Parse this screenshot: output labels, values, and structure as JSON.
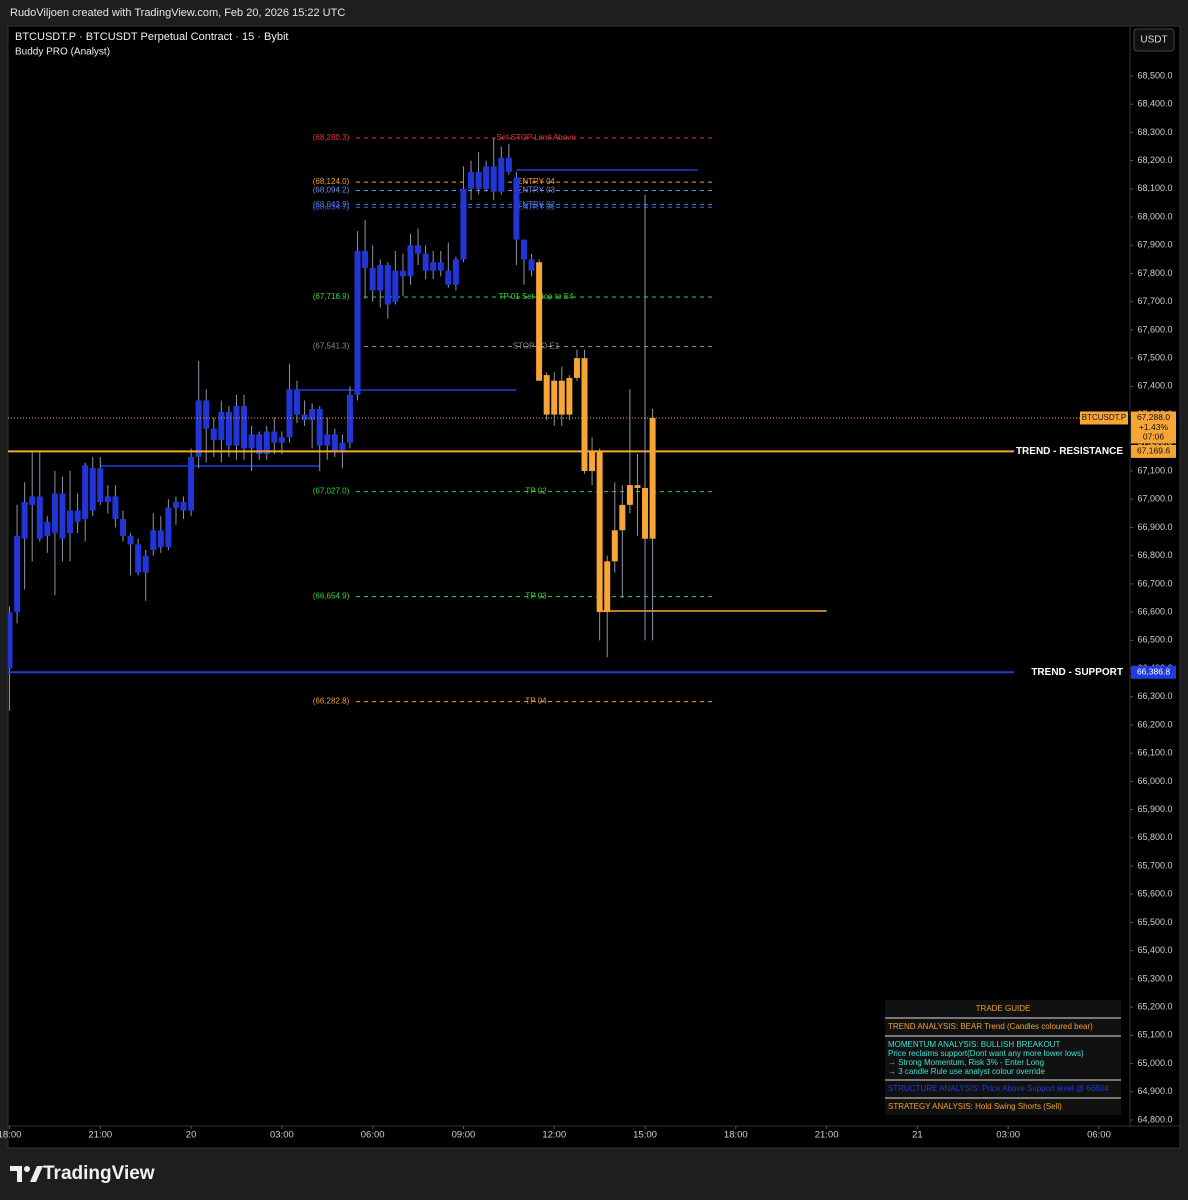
{
  "header": {
    "credit": "RudoViljoen created with TradingView.com, Feb 20, 2026 15:22 UTC",
    "currency_button": "USDT"
  },
  "footer": {
    "brand": "TradingView"
  },
  "chart_data": {
    "type": "candlestick",
    "title": "BTCUSDT.P · BTCUSDT Perpetual Contract · 15 · Bybit",
    "subtitle": "Buddy PRO (Analyst)",
    "xlim": [
      -0.2,
      148.1
    ],
    "xticks": [
      {
        "value": 0,
        "label": "18:00"
      },
      {
        "value": 12,
        "label": "21:00"
      },
      {
        "value": 24,
        "label": "20"
      },
      {
        "value": 36,
        "label": "03:00"
      },
      {
        "value": 48,
        "label": "06:00"
      },
      {
        "value": 60,
        "label": "09:00"
      },
      {
        "value": 72,
        "label": "12:00"
      },
      {
        "value": 84,
        "label": "15:00"
      },
      {
        "value": 96,
        "label": "18:00"
      },
      {
        "value": 108,
        "label": "21:00"
      },
      {
        "value": 120,
        "label": "21"
      },
      {
        "value": 132,
        "label": "03:00"
      },
      {
        "value": 144,
        "label": "06:00"
      }
    ],
    "ylim": [
      64778.7,
      68663
    ],
    "yticks": [
      {
        "value": 64800,
        "label": "64,800.0"
      },
      {
        "value": 64900,
        "label": "64,900.0"
      },
      {
        "value": 65000,
        "label": "65,000.0"
      },
      {
        "value": 65100,
        "label": "65,100.0"
      },
      {
        "value": 65200,
        "label": "65,200.0"
      },
      {
        "value": 65300,
        "label": "65,300.0"
      },
      {
        "value": 65400,
        "label": "65,400.0"
      },
      {
        "value": 65500,
        "label": "65,500.0"
      },
      {
        "value": 65600,
        "label": "65,600.0"
      },
      {
        "value": 65700,
        "label": "65,700.0"
      },
      {
        "value": 65800,
        "label": "65,800.0"
      },
      {
        "value": 65900,
        "label": "65,900.0"
      },
      {
        "value": 66000,
        "label": "66,000.0"
      },
      {
        "value": 66100,
        "label": "66,100.0"
      },
      {
        "value": 66200,
        "label": "66,200.0"
      },
      {
        "value": 66300,
        "label": "66,300.0"
      },
      {
        "value": 66400,
        "label": "66,400.0"
      },
      {
        "value": 66500,
        "label": "66,500.0"
      },
      {
        "value": 66600,
        "label": "66,600.0"
      },
      {
        "value": 66700,
        "label": "66,700.0"
      },
      {
        "value": 66800,
        "label": "66,800.0"
      },
      {
        "value": 66900,
        "label": "66,900.0"
      },
      {
        "value": 67000,
        "label": "67,000.0"
      },
      {
        "value": 67100,
        "label": "67,100.0"
      },
      {
        "value": 67200,
        "label": "67,200.0"
      },
      {
        "value": 67300,
        "label": "67,300.0"
      },
      {
        "value": 67400,
        "label": "67,400.0"
      },
      {
        "value": 67500,
        "label": "67,500.0"
      },
      {
        "value": 67600,
        "label": "67,600.0"
      },
      {
        "value": 67700,
        "label": "67,700.0"
      },
      {
        "value": 67800,
        "label": "67,800.0"
      },
      {
        "value": 67900,
        "label": "67,900.0"
      },
      {
        "value": 68000,
        "label": "68,000.0"
      },
      {
        "value": 68100,
        "label": "68,100.0"
      },
      {
        "value": 68200,
        "label": "68,200.0"
      },
      {
        "value": 68300,
        "label": "68,300.0"
      },
      {
        "value": 68400,
        "label": "68,400.0"
      },
      {
        "value": 68500,
        "label": "68,500.0"
      }
    ],
    "series": [
      {
        "color": "#2236d8",
        "x": [
          0,
          1,
          2,
          3,
          4,
          5,
          6,
          7,
          8,
          9,
          10,
          11,
          12,
          13,
          14,
          15,
          16,
          17,
          18,
          19,
          20,
          21,
          22,
          23,
          24,
          25,
          26,
          27,
          28,
          29,
          30,
          31,
          32,
          33,
          34,
          35,
          36,
          37,
          38,
          39,
          40,
          41,
          42,
          43,
          44,
          45,
          46,
          47,
          48,
          49,
          50,
          51,
          52,
          53,
          54,
          55,
          56,
          57,
          58,
          59,
          60,
          61,
          62,
          63,
          64,
          65,
          66,
          67,
          68,
          69
        ],
        "open": [
          66400,
          66600,
          66860,
          66980,
          67010,
          66870,
          66880,
          67020,
          66880,
          66960,
          66930,
          66960,
          67110,
          66990,
          67010,
          66930,
          66870,
          66840,
          66740,
          66820,
          66890,
          66830,
          66970,
          66990,
          66960,
          67150,
          67350,
          67250,
          67210,
          67310,
          67190,
          67330,
          67180,
          67230,
          67160,
          67240,
          67200,
          67220,
          67390,
          67300,
          67280,
          67320,
          67190,
          67230,
          67170,
          67200,
          67370,
          67880,
          67820,
          67740,
          67830,
          67700,
          67810,
          67790,
          67900,
          67870,
          67810,
          67840,
          67810,
          67760,
          67850,
          68100,
          68160,
          68100,
          68180,
          68090,
          68210,
          68140,
          67920,
          67850
        ],
        "high": [
          66620,
          66980,
          67060,
          67170,
          67170,
          66940,
          67100,
          67080,
          67100,
          67020,
          67130,
          67150,
          67150,
          67050,
          67050,
          66960,
          66880,
          66860,
          66820,
          66950,
          66940,
          67000,
          67010,
          67010,
          67180,
          67490,
          67390,
          67290,
          67350,
          67330,
          67370,
          67370,
          67260,
          67240,
          67260,
          67290,
          67240,
          67480,
          67420,
          67350,
          67340,
          67330,
          67290,
          67250,
          67230,
          67400,
          67950,
          67990,
          67900,
          67850,
          67840,
          67880,
          67870,
          67940,
          67960,
          67900,
          67880,
          67880,
          67910,
          67860,
          68180,
          68200,
          68230,
          68200,
          68280,
          68250,
          68260,
          68160,
          67920,
          67870
        ],
        "low": [
          66250,
          66560,
          66680,
          66780,
          66850,
          66810,
          66660,
          66780,
          66780,
          66880,
          66850,
          66940,
          66980,
          66950,
          66900,
          66850,
          66730,
          66730,
          66640,
          66800,
          66810,
          66820,
          66910,
          66930,
          66940,
          67110,
          67130,
          67150,
          67130,
          67150,
          67140,
          67140,
          67100,
          67140,
          67140,
          67160,
          67160,
          67200,
          67270,
          67260,
          67180,
          67100,
          67140,
          67150,
          67110,
          67180,
          67350,
          67710,
          67700,
          67680,
          67640,
          67690,
          67720,
          67760,
          67830,
          67780,
          67780,
          67790,
          67750,
          67740,
          67840,
          68060,
          68080,
          68090,
          68060,
          68080,
          68150,
          67830,
          67760,
          67790
        ],
        "close": [
          66600,
          66870,
          66990,
          67010,
          66860,
          66920,
          67020,
          66860,
          66960,
          66920,
          67120,
          67110,
          66990,
          67010,
          66930,
          66870,
          66840,
          66740,
          66800,
          66890,
          66830,
          66970,
          66990,
          66960,
          67150,
          67350,
          67250,
          67210,
          67310,
          67190,
          67330,
          67180,
          67230,
          67160,
          67240,
          67200,
          67220,
          67390,
          67300,
          67280,
          67320,
          67190,
          67230,
          67170,
          67200,
          67370,
          67880,
          67820,
          67740,
          67830,
          67690,
          67810,
          67790,
          67900,
          67870,
          67810,
          67840,
          67810,
          67760,
          67850,
          68100,
          68160,
          68100,
          68180,
          68090,
          68210,
          68160,
          67920,
          67850,
          67810
        ]
      },
      {
        "color": "#f7a535",
        "x": [
          70,
          71,
          72,
          73,
          74,
          75,
          76,
          77,
          78,
          79,
          80,
          81,
          82,
          83,
          84,
          85
        ],
        "open": [
          67840,
          67440,
          67300,
          67420,
          67300,
          67430,
          67500,
          67100,
          67170,
          66600,
          66780,
          66890,
          66980,
          67050,
          67040,
          66860
        ],
        "high": [
          67850,
          67450,
          67450,
          67470,
          67440,
          67530,
          67530,
          67220,
          67180,
          66800,
          67060,
          67050,
          67390,
          67160,
          68080,
          67320
        ],
        "low": [
          67420,
          67280,
          67260,
          67260,
          67280,
          67420,
          67090,
          67050,
          66500,
          66440,
          66740,
          66650,
          66950,
          66870,
          66500,
          66500
        ],
        "close": [
          67420,
          67300,
          67420,
          67300,
          67430,
          67500,
          67100,
          67170,
          66600,
          66780,
          66890,
          66980,
          67050,
          67040,
          66860,
          67288
        ]
      }
    ],
    "levels": [
      {
        "value": 68280.3,
        "value_label": "(68,280.3)",
        "label": "Set STOP Limit Above",
        "color": "#e0382f"
      },
      {
        "value": 68124.0,
        "value_label": "(68,124.0)",
        "label": "ENTRY 04",
        "color": "#f0a030"
      },
      {
        "value": 68094.2,
        "value_label": "(68,094.2)",
        "label": "ENTRY 03",
        "color": "#6f8fe0"
      },
      {
        "value": 68043.9,
        "value_label": "(68,043.9)",
        "label": "ENTRY 02",
        "color": "#4c7de0"
      },
      {
        "value": 68034.7,
        "value_label": "(68,034.7)",
        "label": "ENTRY 01",
        "color": "#3a6ad8"
      },
      {
        "value": 67716.9,
        "value_label": "(67,716.9)",
        "label": "TP 01 Set Stop to E4",
        "color": "#35d43a"
      },
      {
        "value": 67541.3,
        "value_label": "(67,541.3)",
        "label": "STOP TO E1",
        "color": "#8a8a8a"
      },
      {
        "value": 67027.0,
        "value_label": "(67,027.0)",
        "label": "TP 02",
        "color": "#35d43a"
      },
      {
        "value": 66654.9,
        "value_label": "(66,654.9)",
        "label": "TP 03",
        "color": "#35d43a"
      },
      {
        "value": 66282.8,
        "value_label": "(66,282.8)",
        "label": "TP 04",
        "color": "#f0a030"
      }
    ],
    "segments": [
      {
        "value": 68167,
        "x": [
          67,
          91
        ],
        "color": "#1e3ce0"
      },
      {
        "value": 67387,
        "x": [
          38,
          67
        ],
        "color": "#1e3ce0"
      },
      {
        "value": 67118,
        "x": [
          12,
          41
        ],
        "color": "#1e3ce0"
      },
      {
        "value": 66604,
        "x": [
          78,
          108
        ],
        "color": "#f7a535"
      }
    ],
    "trend_lines": [
      {
        "label": "TREND - RESISTANCE",
        "value": 67169.6,
        "value_label": "67,169.6",
        "color": "#f7a535"
      },
      {
        "label": "TREND - SUPPORT",
        "value": 66386.8,
        "value_label": "66,386.8",
        "color": "#1e3ce0"
      }
    ],
    "last_price": {
      "symbol": "BTCUSDT.P",
      "value": 67288.0,
      "value_label": "67,288.0",
      "change": 1.43,
      "change_label": "+1.43%",
      "countdown": "07:06",
      "color": "#f7a535"
    },
    "trade_guide": {
      "title": "TRADE GUIDE",
      "trend": "TREND ANALYSIS: BEAR Trend (Candles coloured bear)",
      "momentum": [
        "MOMENTUM ANALYSIS: BULLISH BREAKOUT",
        " Price reclaims support(Dont want any more lower lows)",
        "→ Strong Momentum, Risk 3% - Enter Long",
        "→ 3 candle Rule use analyst colour override"
      ],
      "structure": "STRUCTURE ANALYSIS: Price Above Support level @ 66604",
      "strategy": "STRATEGY ANALYSIS: Hold Swing Shorts (Sell)"
    }
  }
}
